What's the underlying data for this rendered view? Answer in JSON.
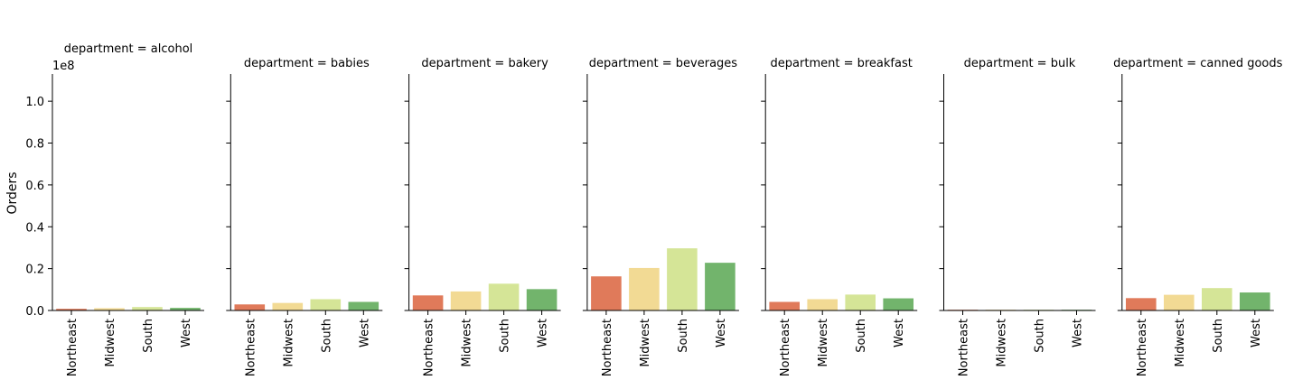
{
  "figure": {
    "ylabel": "Orders",
    "y_scale_label": "1e8",
    "y_tick_labels": [
      "0.0",
      "0.2",
      "0.4",
      "0.6",
      "0.8",
      "1.0"
    ]
  },
  "chart_data": [
    {
      "type": "bar",
      "title": "department = alcohol",
      "categories": [
        "Northeast",
        "Midwest",
        "South",
        "West"
      ],
      "values": [
        800000,
        1100000,
        1650000,
        1250000
      ],
      "ylim": [
        0,
        113000000
      ],
      "ylabel": "Orders"
    },
    {
      "type": "bar",
      "title": "department = babies",
      "categories": [
        "Northeast",
        "Midwest",
        "South",
        "West"
      ],
      "values": [
        2900000,
        3600000,
        5400000,
        4100000
      ],
      "ylim": [
        0,
        113000000
      ]
    },
    {
      "type": "bar",
      "title": "department = bakery",
      "categories": [
        "Northeast",
        "Midwest",
        "South",
        "West"
      ],
      "values": [
        7200000,
        9100000,
        12800000,
        10200000
      ],
      "ylim": [
        0,
        113000000
      ]
    },
    {
      "type": "bar",
      "title": "department = beverages",
      "categories": [
        "Northeast",
        "Midwest",
        "South",
        "West"
      ],
      "values": [
        16300000,
        20300000,
        29700000,
        22800000
      ],
      "ylim": [
        0,
        113000000
      ]
    },
    {
      "type": "bar",
      "title": "department = breakfast",
      "categories": [
        "Northeast",
        "Midwest",
        "South",
        "West"
      ],
      "values": [
        4100000,
        5400000,
        7600000,
        5800000
      ],
      "ylim": [
        0,
        113000000
      ]
    },
    {
      "type": "bar",
      "title": "department = bulk",
      "categories": [
        "Northeast",
        "Midwest",
        "South",
        "West"
      ],
      "values": [
        250000,
        150000,
        150000,
        250000
      ],
      "ylim": [
        0,
        113000000
      ]
    },
    {
      "type": "bar",
      "title": "department = canned goods",
      "categories": [
        "Northeast",
        "Midwest",
        "South",
        "West"
      ],
      "values": [
        5900000,
        7500000,
        10700000,
        8600000
      ],
      "ylim": [
        0,
        113000000
      ]
    }
  ],
  "colors": {
    "Northeast": "#e07a5a",
    "Midwest": "#f2da94",
    "South": "#d5e597",
    "West": "#72b46c"
  }
}
